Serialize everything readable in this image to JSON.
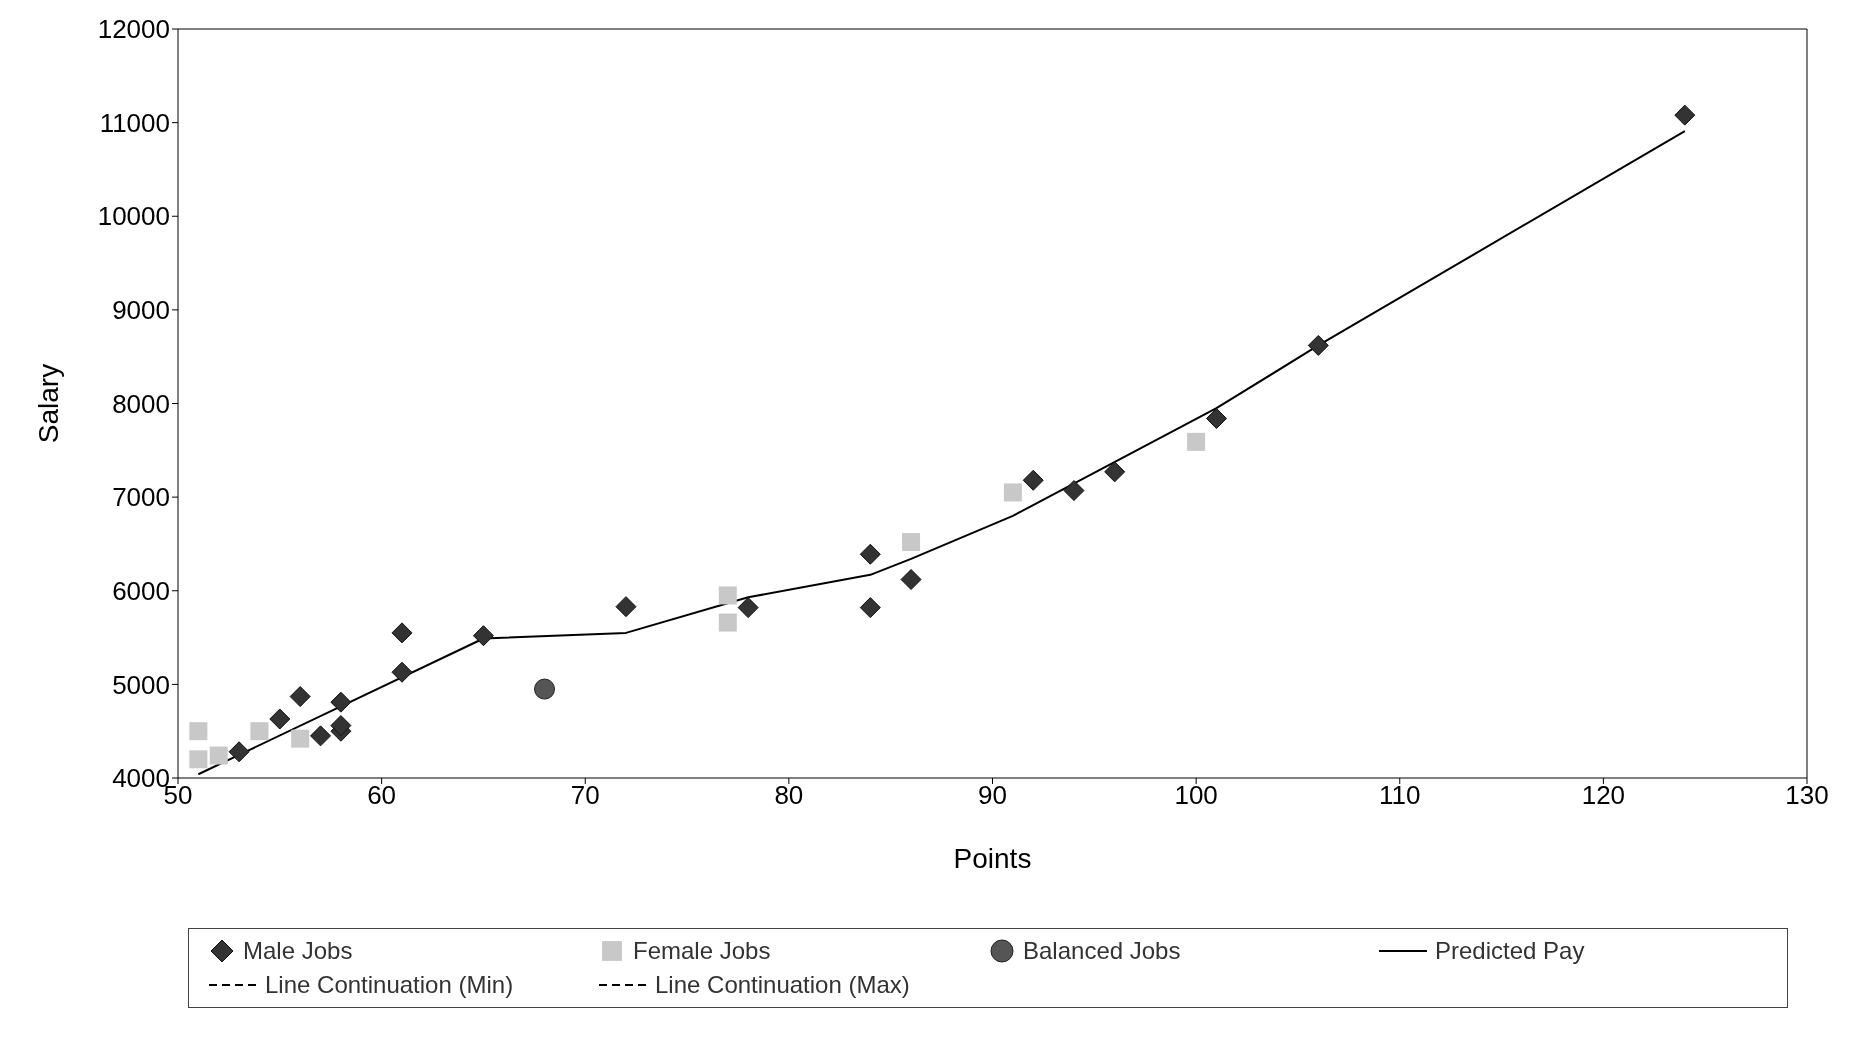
{
  "chart_data": {
    "type": "scatter",
    "xlabel": "Points",
    "ylabel": "Salary",
    "xlim": [
      50,
      130
    ],
    "xticks": [
      50,
      60,
      70,
      80,
      90,
      100,
      110,
      120,
      130
    ],
    "ylim": [
      4000,
      12000
    ],
    "yticks": [
      4000,
      5000,
      6000,
      7000,
      8000,
      9000,
      10000,
      11000,
      12000
    ],
    "grid": false,
    "legend": "bottom",
    "series": [
      {
        "name": "Male Jobs",
        "type": "scatter",
        "marker": "diamond",
        "color": "#333333",
        "x": [
          53,
          55,
          56,
          57,
          58,
          58,
          58,
          61,
          61,
          65,
          72,
          78,
          84,
          84,
          86,
          92,
          94,
          96,
          101,
          106,
          124
        ],
        "values": [
          4280,
          4630,
          4870,
          4450,
          4500,
          4560,
          4810,
          5550,
          5130,
          5520,
          5830,
          5820,
          6390,
          5820,
          6120,
          7180,
          7070,
          7270,
          7840,
          8620,
          11080
        ]
      },
      {
        "name": "Female Jobs",
        "type": "scatter",
        "marker": "square",
        "color": "#c8c8c8",
        "x": [
          51,
          51,
          52,
          54,
          56,
          77,
          77,
          86,
          91,
          100
        ],
        "values": [
          4500,
          4200,
          4240,
          4500,
          4420,
          5950,
          5660,
          6520,
          7050,
          7590
        ]
      },
      {
        "name": "Balanced Jobs",
        "type": "scatter",
        "marker": "circle",
        "color": "#555555",
        "x": [
          68
        ],
        "values": [
          4950
        ]
      },
      {
        "name": "Predicted Pay",
        "type": "line",
        "marker": "none",
        "line_style": "solid",
        "color": "#000000",
        "x": [
          51,
          65,
          72,
          78,
          84,
          86,
          91,
          101,
          106,
          124
        ],
        "values": [
          4040,
          5490,
          5550,
          5930,
          6170,
          6340,
          6800,
          7950,
          8620,
          10910
        ]
      },
      {
        "name": "Line Continuation (Min)",
        "type": "line",
        "marker": "none",
        "line_style": "dashed",
        "color": "#000000"
      },
      {
        "name": "Line Continuation (Max)",
        "type": "line",
        "marker": "none",
        "line_style": "dashed",
        "color": "#000000"
      }
    ]
  }
}
